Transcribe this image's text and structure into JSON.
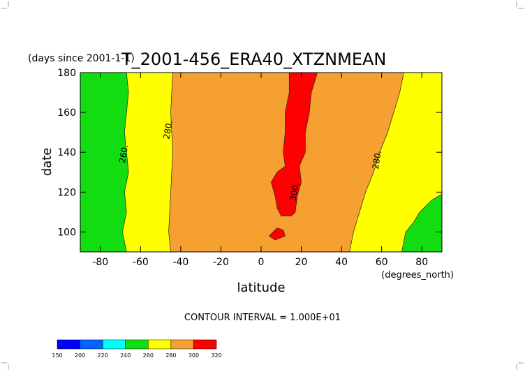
{
  "chart_data": {
    "type": "filled-contour",
    "title": "T_2001-456_ERA40_XTZNMEAN",
    "subtitle": "(days since 2001-1-1)",
    "x_label": "latitude",
    "x_units": "(degrees_north)",
    "y_label": "date",
    "footnote": "CONTOUR INTERVAL = 1.000E+01",
    "xlim": [
      -90,
      90
    ],
    "ylim": [
      90,
      180
    ],
    "xticks": [
      -80,
      -60,
      -40,
      -20,
      0,
      20,
      40,
      60,
      80
    ],
    "yticks": [
      100,
      120,
      140,
      160,
      180
    ],
    "colorbar": {
      "levels": [
        150,
        200,
        220,
        240,
        260,
        280,
        300,
        320
      ],
      "colors": [
        "#0000ff",
        "#0064ff",
        "#00ffff",
        "#11dd11",
        "#ffff00",
        "#f5a030",
        "#ff0000"
      ]
    },
    "regions": [
      {
        "level": 280,
        "lat": [
          -90,
          90,
          90,
          -90
        ],
        "date": [
          90,
          90,
          180,
          180
        ]
      },
      {
        "level": 260,
        "lat": [
          -90,
          -45,
          -46,
          -45,
          -44,
          -45,
          -44,
          -90
        ],
        "date": [
          90,
          90,
          100,
          120,
          140,
          160,
          180,
          180
        ]
      },
      {
        "level": 240,
        "lat": [
          -90,
          -67,
          -69,
          -67,
          -68,
          -66,
          -67,
          -68,
          -67,
          -66,
          -67,
          -90
        ],
        "date": [
          90,
          90,
          100,
          110,
          120,
          130,
          140,
          150,
          160,
          170,
          180,
          180
        ]
      },
      {
        "level": 260,
        "lat": [
          90,
          44,
          46,
          49,
          52,
          56,
          59,
          63,
          66,
          69,
          71,
          90
        ],
        "date": [
          90,
          90,
          100,
          110,
          120,
          130,
          140,
          150,
          160,
          170,
          180,
          180
        ]
      },
      {
        "level": 240,
        "lat": [
          90,
          70,
          72,
          76,
          79,
          85,
          90
        ],
        "date": [
          90,
          90,
          100,
          105,
          110,
          116,
          119
        ]
      },
      {
        "level": 300,
        "lat": [
          10,
          8,
          7,
          5,
          8,
          12,
          11,
          12,
          12,
          14,
          14,
          28,
          25,
          24,
          22,
          22,
          19,
          20,
          18,
          17,
          15
        ],
        "date": [
          108,
          112,
          118,
          125,
          130,
          133,
          140,
          150,
          160,
          170,
          180,
          180,
          170,
          160,
          150,
          140,
          133,
          125,
          118,
          110,
          108
        ]
      },
      {
        "level": 300,
        "lat": [
          4,
          7,
          12,
          11,
          8
        ],
        "date": [
          98,
          96,
          98,
          101,
          102
        ]
      }
    ],
    "contour_labels": [
      {
        "text": "260.",
        "lat": -67,
        "date": 139
      },
      {
        "text": "280.",
        "lat": -45,
        "date": 151
      },
      {
        "text": "300.",
        "lat": 18,
        "date": 120
      },
      {
        "text": "280.",
        "lat": 59,
        "date": 136
      }
    ]
  }
}
